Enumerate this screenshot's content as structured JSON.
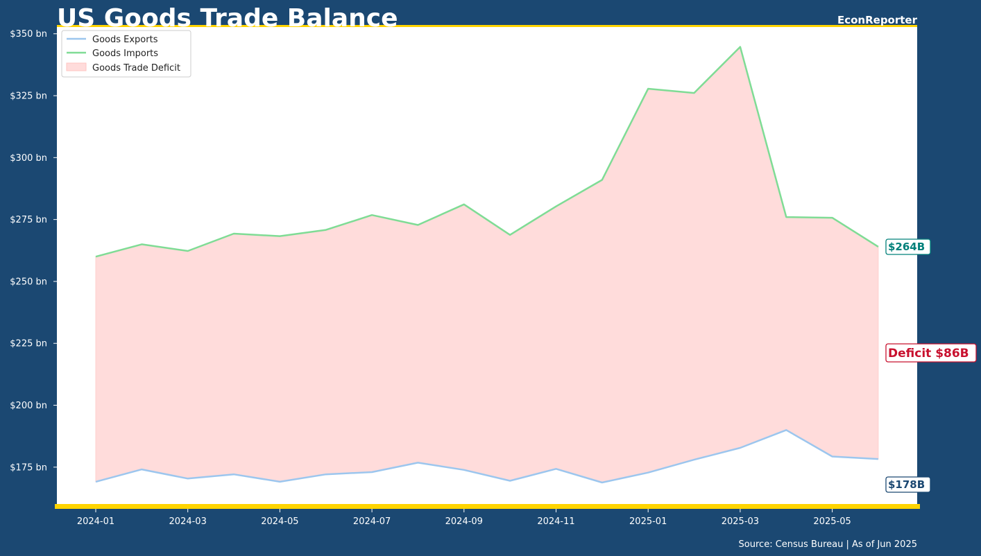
{
  "header": {
    "title": "US Goods Trade Balance",
    "brand": "EconReporter"
  },
  "footer": {
    "source": "Source: Census Bureau | As of Jun 2025"
  },
  "colors": {
    "background": "#1b4872",
    "plot_background": "#ffffff",
    "accent_yellow": "#ffd400",
    "exports_line": "#9cc6ee",
    "imports_line": "#7fdc95",
    "deficit_fill": "#ffdcdb",
    "imports_label": "#00807a",
    "exports_label": "#1b4872",
    "deficit_label": "#c8102e"
  },
  "annotations": {
    "imports_last": "$264B",
    "exports_last": "$178B",
    "deficit_last": "Deficit $86B"
  },
  "chart_data": {
    "type": "line",
    "title": "US Goods Trade Balance",
    "xlabel": "",
    "ylabel": "",
    "x": [
      "2024-01",
      "2024-02",
      "2024-03",
      "2024-04",
      "2024-05",
      "2024-06",
      "2024-07",
      "2024-08",
      "2024-09",
      "2024-10",
      "2024-11",
      "2024-12",
      "2025-01",
      "2025-02",
      "2025-03",
      "2025-04",
      "2025-05",
      "2025-06"
    ],
    "x_ticks": [
      "2024-01",
      "2024-03",
      "2024-05",
      "2024-07",
      "2024-09",
      "2024-11",
      "2025-01",
      "2025-03",
      "2025-05"
    ],
    "y_ticks": [
      175,
      200,
      225,
      250,
      275,
      300,
      325,
      350
    ],
    "y_tick_labels": [
      "$175 bn",
      "$200 bn",
      "$225 bn",
      "$250 bn",
      "$275 bn",
      "$300 bn",
      "$325 bn",
      "$350 bn"
    ],
    "ylim": [
      159,
      353
    ],
    "grid": false,
    "legend": "top-left",
    "series": [
      {
        "name": "Goods Exports",
        "values": [
          169.1,
          174.1,
          170.4,
          172.1,
          169.1,
          172.1,
          173.0,
          176.8,
          173.9,
          169.5,
          174.3,
          168.8,
          172.8,
          178.0,
          182.8,
          190.0,
          179.3,
          178.3
        ]
      },
      {
        "name": "Goods Imports",
        "values": [
          260.0,
          265.0,
          262.3,
          269.3,
          268.3,
          270.8,
          276.8,
          272.8,
          281.1,
          268.8,
          280.3,
          291.0,
          327.8,
          326.1,
          344.7,
          276.0,
          275.7,
          264.0
        ]
      }
    ],
    "fill_between": {
      "name": "Goods Trade Deficit",
      "upper": "Goods Imports",
      "lower": "Goods Exports"
    }
  }
}
